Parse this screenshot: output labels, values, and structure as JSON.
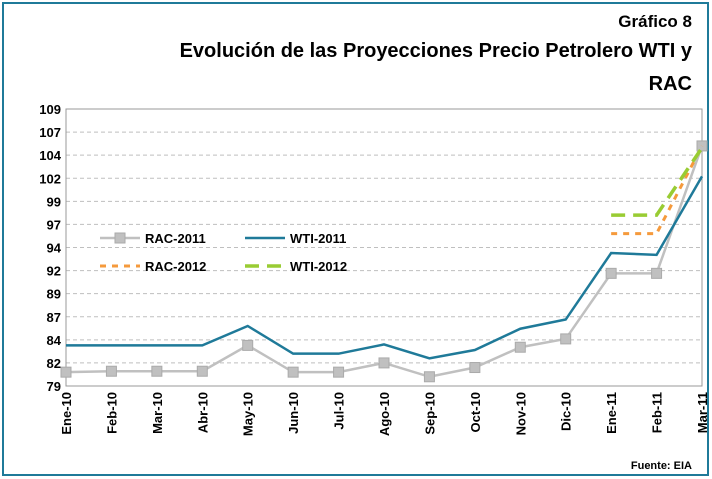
{
  "chart_data": {
    "type": "line",
    "subtitle": "Gráfico 8",
    "title_lines": [
      "Evolución de las Proyecciones Precio Petrolero WTI y",
      "RAC"
    ],
    "source": "Fuente: EIA",
    "categories": [
      "Ene-10",
      "Feb-10",
      "Mar-10",
      "Abr-10",
      "May-10",
      "Jun-10",
      "Jul-10",
      "Ago-10",
      "Sep-10",
      "Oct-10",
      "Nov-10",
      "Dic-10",
      "Ene-11",
      "Feb-11",
      "Mar-11"
    ],
    "series": [
      {
        "name": "RAC-2011",
        "color": "#c0c0c0",
        "dash": "solid",
        "marker": "square",
        "values": [
          80.5,
          80.6,
          80.6,
          80.6,
          83.4,
          80.5,
          80.5,
          81.5,
          80.0,
          81.0,
          83.2,
          84.1,
          91.2,
          91.2,
          105.0
        ]
      },
      {
        "name": "WTI-2011",
        "color": "#1f7a99",
        "dash": "solid",
        "marker": "none",
        "values": [
          83.4,
          83.4,
          83.4,
          83.4,
          85.5,
          82.5,
          82.5,
          83.5,
          82.0,
          82.9,
          85.2,
          86.2,
          93.4,
          93.2,
          101.7
        ]
      },
      {
        "name": "RAC-2012",
        "color": "#f59a3c",
        "dash": "dotted",
        "marker": "none",
        "values": [
          null,
          null,
          null,
          null,
          null,
          null,
          null,
          null,
          null,
          null,
          null,
          null,
          95.5,
          95.5,
          105.0
        ]
      },
      {
        "name": "WTI-2012",
        "color": "#99cc33",
        "dash": "dashed",
        "marker": "none",
        "values": [
          null,
          null,
          null,
          null,
          null,
          null,
          null,
          null,
          null,
          null,
          null,
          null,
          97.5,
          97.5,
          104.8
        ]
      }
    ],
    "ylim": [
      79,
      109
    ],
    "yticks": [
      79,
      {
        "value": 81.5,
        "label": "82"
      },
      84,
      {
        "value": 86.5,
        "label": "87"
      },
      89,
      {
        "value": 91.5,
        "label": "92"
      },
      94,
      {
        "value": 96.5,
        "label": "97"
      },
      99,
      {
        "value": 101.5,
        "label": "102"
      },
      104,
      {
        "value": 106.5,
        "label": "107"
      },
      109
    ],
    "grid": true
  }
}
